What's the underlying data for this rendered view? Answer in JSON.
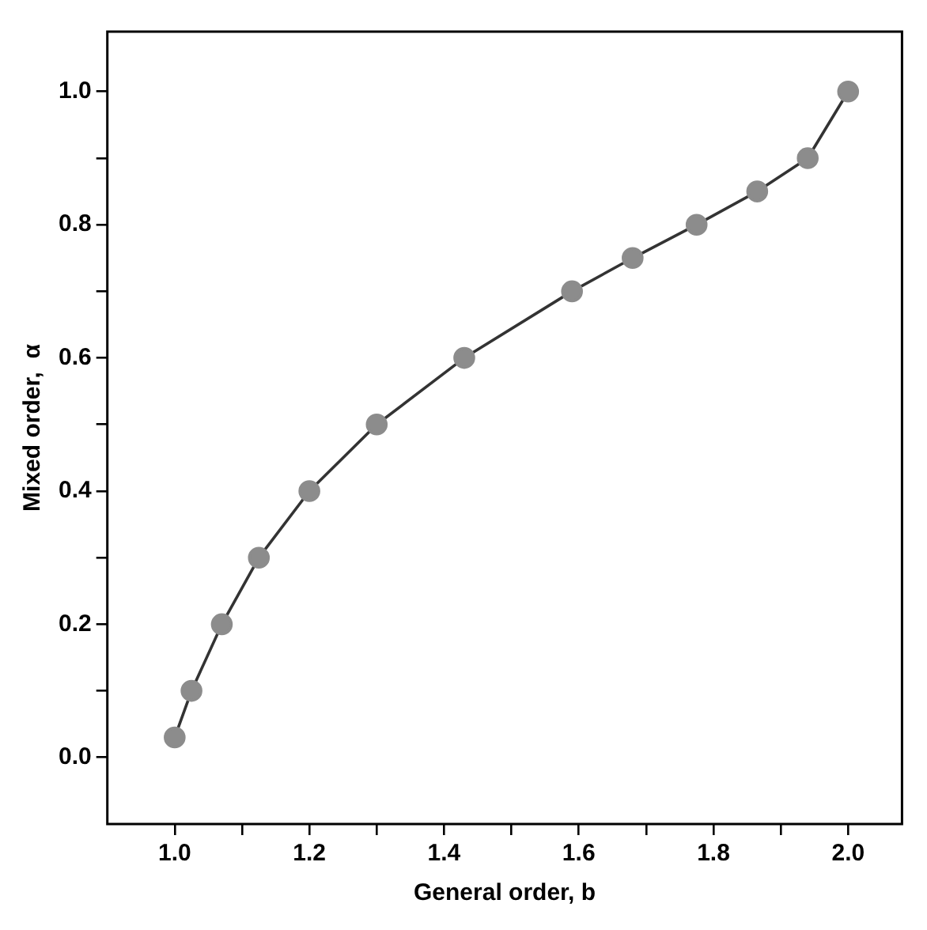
{
  "chart_data": {
    "type": "line",
    "xlabel": "General order, b",
    "ylabel": "Mixed order,  α",
    "x": [
      1.0,
      1.025,
      1.07,
      1.125,
      1.2,
      1.3,
      1.43,
      1.59,
      1.68,
      1.775,
      1.865,
      1.94,
      2.0
    ],
    "series": [
      {
        "color": "#8c8c8c",
        "values": [
          0.03,
          0.1,
          0.2,
          0.3,
          0.4,
          0.5,
          0.6,
          0.7,
          0.75,
          0.8,
          0.85,
          0.9,
          1.0
        ]
      }
    ],
    "marker": "circle",
    "line_style": "solid",
    "grid": false,
    "legend": false,
    "xlim": [
      0.9,
      2.08
    ],
    "ylim": [
      -0.1,
      1.09
    ],
    "xticks": [
      {
        "value": 1,
        "label": "1.0"
      },
      {
        "value": 1.1,
        "label": null
      },
      1.2,
      {
        "value": 1.3,
        "label": null
      },
      1.4,
      {
        "value": 1.5,
        "label": null
      },
      1.6,
      {
        "value": 1.7,
        "label": null
      },
      1.8,
      {
        "value": 1.9,
        "label": null
      },
      {
        "value": 2,
        "label": "2.0"
      }
    ],
    "yticks": [
      {
        "value": 0,
        "label": "0.0"
      },
      {
        "value": 0.1,
        "label": null
      },
      0.2,
      {
        "value": 0.3,
        "label": null
      },
      0.4,
      {
        "value": 0.5,
        "label": null
      },
      0.6,
      {
        "value": 0.7,
        "label": null
      },
      0.8,
      {
        "value": 0.9,
        "label": null
      },
      {
        "value": 1,
        "label": "1.0"
      }
    ]
  }
}
